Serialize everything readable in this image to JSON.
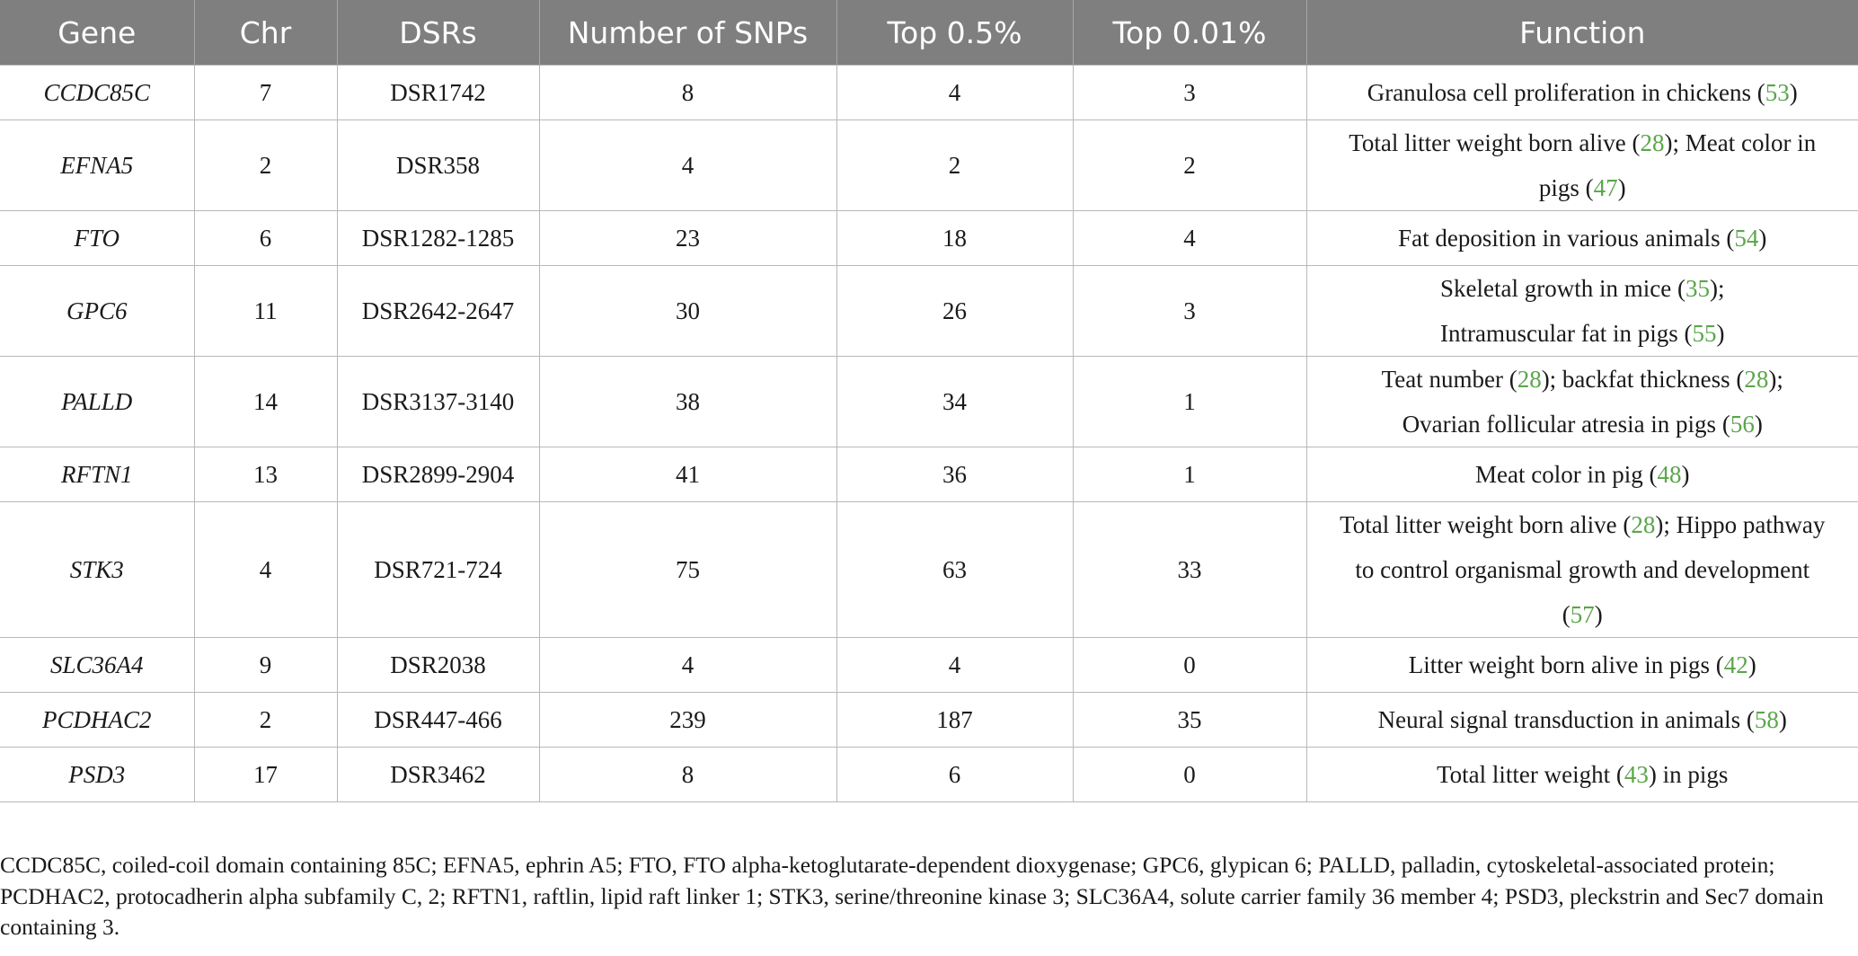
{
  "table": {
    "headers": [
      "Gene",
      "Chr",
      "DSRs",
      "Number of SNPs",
      "Top 0.5%",
      "Top 0.01%",
      "Function"
    ],
    "rows": [
      {
        "gene": "CCDC85C",
        "chr": "7",
        "dsrs": "DSR1742",
        "snps": "8",
        "top05": "4",
        "top001": "3",
        "function": [
          {
            "text": "Granulosa cell proliferation in chickens ("
          },
          {
            "ref": "53"
          },
          {
            "text": ")"
          }
        ]
      },
      {
        "gene": "EFNA5",
        "chr": "2",
        "dsrs": "DSR358",
        "snps": "4",
        "top05": "2",
        "top001": "2",
        "function": [
          {
            "text": "Total litter weight born alive ("
          },
          {
            "ref": "28"
          },
          {
            "text": "); Meat color in "
          },
          {
            "br": true
          },
          {
            "text": "pigs ("
          },
          {
            "ref": "47"
          },
          {
            "text": ")"
          }
        ]
      },
      {
        "gene": "FTO",
        "chr": "6",
        "dsrs": "DSR1282-1285",
        "snps": "23",
        "top05": "18",
        "top001": "4",
        "function": [
          {
            "text": "Fat deposition in various animals ("
          },
          {
            "ref": "54"
          },
          {
            "text": ")"
          }
        ]
      },
      {
        "gene": "GPC6",
        "chr": "11",
        "dsrs": "DSR2642-2647",
        "snps": "30",
        "top05": "26",
        "top001": "3",
        "function": [
          {
            "text": "Skeletal growth in mice ("
          },
          {
            "ref": "35"
          },
          {
            "text": ");"
          },
          {
            "br": true
          },
          {
            "text": "Intramuscular fat in pigs ("
          },
          {
            "ref": "55"
          },
          {
            "text": ")"
          }
        ]
      },
      {
        "gene": "PALLD",
        "chr": "14",
        "dsrs": "DSR3137-3140",
        "snps": "38",
        "top05": "34",
        "top001": "1",
        "function": [
          {
            "text": "Teat number ("
          },
          {
            "ref": "28"
          },
          {
            "text": "); backfat thickness ("
          },
          {
            "ref": "28"
          },
          {
            "text": ");"
          },
          {
            "br": true
          },
          {
            "text": "Ovarian follicular atresia in pigs ("
          },
          {
            "ref": "56"
          },
          {
            "text": ")"
          }
        ]
      },
      {
        "gene": "RFTN1",
        "chr": "13",
        "dsrs": "DSR2899-2904",
        "snps": "41",
        "top05": "36",
        "top001": "1",
        "function": [
          {
            "text": "Meat color in pig ("
          },
          {
            "ref": "48"
          },
          {
            "text": ")"
          }
        ]
      },
      {
        "gene": "STK3",
        "chr": "4",
        "dsrs": "DSR721-724",
        "snps": "75",
        "top05": "63",
        "top001": "33",
        "function": [
          {
            "text": "Total litter weight born alive ("
          },
          {
            "ref": "28"
          },
          {
            "text": "); Hippo pathway"
          },
          {
            "br": true
          },
          {
            "text": "to control organismal growth and development"
          },
          {
            "br": true
          },
          {
            "text": "("
          },
          {
            "ref": "57"
          },
          {
            "text": ")"
          }
        ]
      },
      {
        "gene": "SLC36A4",
        "chr": "9",
        "dsrs": "DSR2038",
        "snps": "4",
        "top05": "4",
        "top001": "0",
        "function": [
          {
            "text": "Litter weight born alive in pigs ("
          },
          {
            "ref": "42"
          },
          {
            "text": ")"
          }
        ]
      },
      {
        "gene": "PCDHAC2",
        "chr": "2",
        "dsrs": "DSR447-466",
        "snps": "239",
        "top05": "187",
        "top001": "35",
        "function": [
          {
            "text": "Neural signal transduction in animals ("
          },
          {
            "ref": "58"
          },
          {
            "text": ")"
          }
        ]
      },
      {
        "gene": "PSD3",
        "chr": "17",
        "dsrs": "DSR3462",
        "snps": "8",
        "top05": "6",
        "top001": "0",
        "function": [
          {
            "text": "Total litter weight ("
          },
          {
            "ref": "43"
          },
          {
            "text": ") in pigs"
          }
        ]
      }
    ]
  },
  "footnote": "CCDC85C, coiled-coil domain containing 85C; EFNA5, ephrin A5; FTO, FTO alpha-ketoglutarate-dependent dioxygenase; GPC6, glypican 6; PALLD, palladin, cytoskeletal-associated protein; PCDHAC2, protocadherin alpha subfamily C, 2; RFTN1, raftlin, lipid raft linker 1; STK3, serine/threonine kinase 3; SLC36A4, solute carrier family 36 member 4; PSD3, pleckstrin and Sec7 domain containing 3.",
  "colors": {
    "header_bg": "#7f7f7f",
    "header_text": "#ffffff",
    "reference_link": "#5aa64a",
    "grid": "#b8b8b8"
  }
}
